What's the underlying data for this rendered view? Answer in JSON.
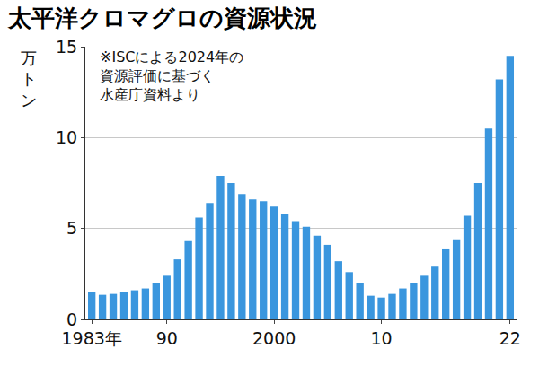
{
  "chart_data": {
    "type": "bar",
    "title": "太平洋クロマグロの資源状況",
    "y_label": "万トン",
    "annotations": [
      {
        "text": "※ISCによる2024年の\n資源評価に基づく\n水産庁資料より"
      }
    ],
    "categories": [
      "1983年",
      null,
      null,
      null,
      null,
      null,
      null,
      "90",
      null,
      null,
      null,
      null,
      null,
      null,
      null,
      null,
      null,
      "2000",
      null,
      null,
      null,
      null,
      null,
      null,
      null,
      null,
      null,
      "10",
      null,
      null,
      null,
      null,
      null,
      null,
      null,
      null,
      null,
      null,
      null,
      "22"
    ],
    "values": [
      1.5,
      1.35,
      1.4,
      1.5,
      1.6,
      1.7,
      2.0,
      2.4,
      3.3,
      4.3,
      5.6,
      6.4,
      7.9,
      7.5,
      6.9,
      6.6,
      6.5,
      6.2,
      5.8,
      5.4,
      5.1,
      4.6,
      4.1,
      3.2,
      2.6,
      2.0,
      1.3,
      1.2,
      1.4,
      1.7,
      2.0,
      2.4,
      2.9,
      3.9,
      4.4,
      5.7,
      7.5,
      10.5,
      13.2,
      14.5
    ],
    "color": "#3a96de",
    "ylim": [
      0,
      15
    ],
    "yticks": [
      0,
      5,
      10,
      15
    ],
    "grid": true
  }
}
